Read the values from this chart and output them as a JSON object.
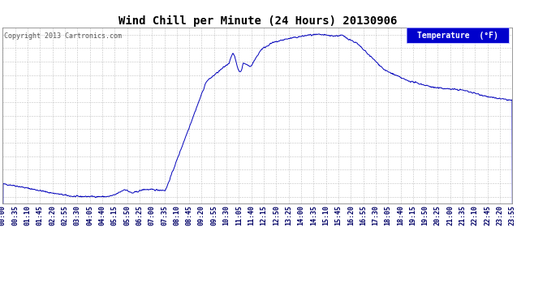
{
  "title": "Wind Chill per Minute (24 Hours) 20130906",
  "copyright": "Copyright 2013 Cartronics.com",
  "legend_label": "Temperature  (°F)",
  "line_color": "#0000bb",
  "background_color": "#ffffff",
  "plot_background": "#ffffff",
  "grid_color": "#bbbbbb",
  "yticks": [
    52.9,
    55.6,
    58.4,
    61.1,
    63.8,
    66.6,
    69.3,
    72.0,
    74.8,
    77.5,
    80.2,
    83.0,
    85.7
  ],
  "ylim": [
    51.5,
    87.2
  ],
  "xtick_labels": [
    "00:00",
    "00:35",
    "01:10",
    "01:45",
    "02:20",
    "02:55",
    "03:30",
    "04:05",
    "04:40",
    "05:15",
    "05:50",
    "06:25",
    "07:00",
    "07:35",
    "08:10",
    "08:45",
    "09:20",
    "09:55",
    "10:30",
    "11:05",
    "11:40",
    "12:15",
    "12:50",
    "13:25",
    "14:00",
    "14:35",
    "15:10",
    "15:45",
    "16:20",
    "16:55",
    "17:30",
    "18:05",
    "18:40",
    "19:15",
    "19:50",
    "20:25",
    "21:00",
    "21:35",
    "22:10",
    "22:45",
    "23:20",
    "23:55"
  ],
  "legend_bg": "#0000cc",
  "legend_text_color": "#ffffff",
  "title_fontsize": 10,
  "tick_fontsize": 6,
  "copyright_fontsize": 6
}
